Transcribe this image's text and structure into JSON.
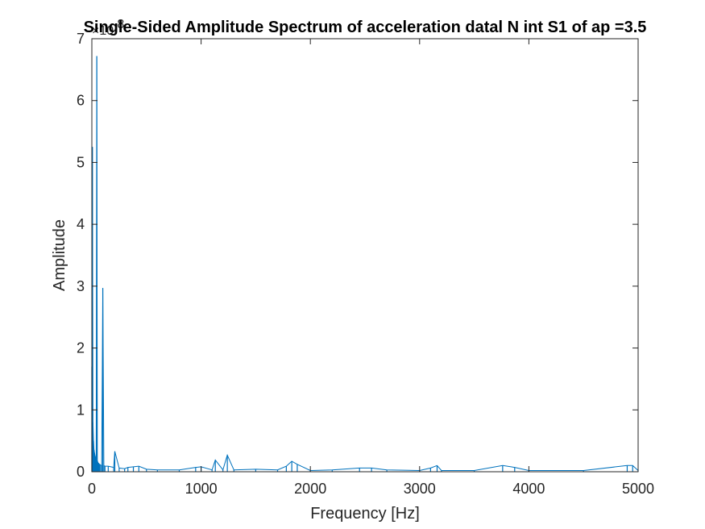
{
  "colors": {
    "line": "#0072BD",
    "axes": "#262626",
    "background": "#ffffff"
  },
  "chart_data": {
    "type": "line",
    "title": "Single-Sided Amplitude Spectrum of acceleration datal N int S1 of ap =3.5",
    "xlabel": "Frequency [Hz]",
    "ylabel": "Amplitude",
    "y_exponent_label": "×10",
    "y_exponent_power": "-8",
    "xlim": [
      0,
      5000
    ],
    "ylim": [
      0,
      7
    ],
    "xticks": [
      0,
      1000,
      2000,
      3000,
      4000,
      5000
    ],
    "xtick_labels": [
      "0",
      "1000",
      "2000",
      "3000",
      "4000",
      "5000"
    ],
    "yticks": [
      0,
      1,
      2,
      3,
      4,
      5,
      6,
      7
    ],
    "ytick_labels": [
      "0",
      "1",
      "2",
      "3",
      "4",
      "5",
      "6",
      "7"
    ],
    "grid": false,
    "series": [
      {
        "x": [
          0,
          5,
          10,
          15,
          20,
          25,
          30,
          35,
          40,
          45,
          50,
          55,
          60,
          65,
          70,
          80,
          90,
          100,
          110,
          120,
          150,
          200,
          210,
          250,
          300,
          330,
          380,
          430,
          500,
          600,
          800,
          950,
          1000,
          1100,
          1130,
          1200,
          1240,
          1300,
          1500,
          1700,
          1780,
          1830,
          1880,
          2000,
          2200,
          2450,
          2560,
          2700,
          3000,
          3100,
          3160,
          3200,
          3500,
          3760,
          3870,
          4000,
          4500,
          4900,
          4950,
          5000
        ],
        "y": [
          1.7,
          5.25,
          0.8,
          0.5,
          0.35,
          0.3,
          0.25,
          0.22,
          0.2,
          6.72,
          0.18,
          0.15,
          0.14,
          0.13,
          0.12,
          0.11,
          0.1,
          2.97,
          0.1,
          0.09,
          0.09,
          0.07,
          0.33,
          0.06,
          0.05,
          0.07,
          0.08,
          0.09,
          0.04,
          0.03,
          0.03,
          0.07,
          0.08,
          0.03,
          0.19,
          0.03,
          0.27,
          0.03,
          0.04,
          0.03,
          0.09,
          0.17,
          0.12,
          0.02,
          0.03,
          0.06,
          0.06,
          0.03,
          0.02,
          0.06,
          0.1,
          0.02,
          0.02,
          0.1,
          0.07,
          0.02,
          0.02,
          0.1,
          0.1,
          0.02
        ]
      }
    ]
  }
}
